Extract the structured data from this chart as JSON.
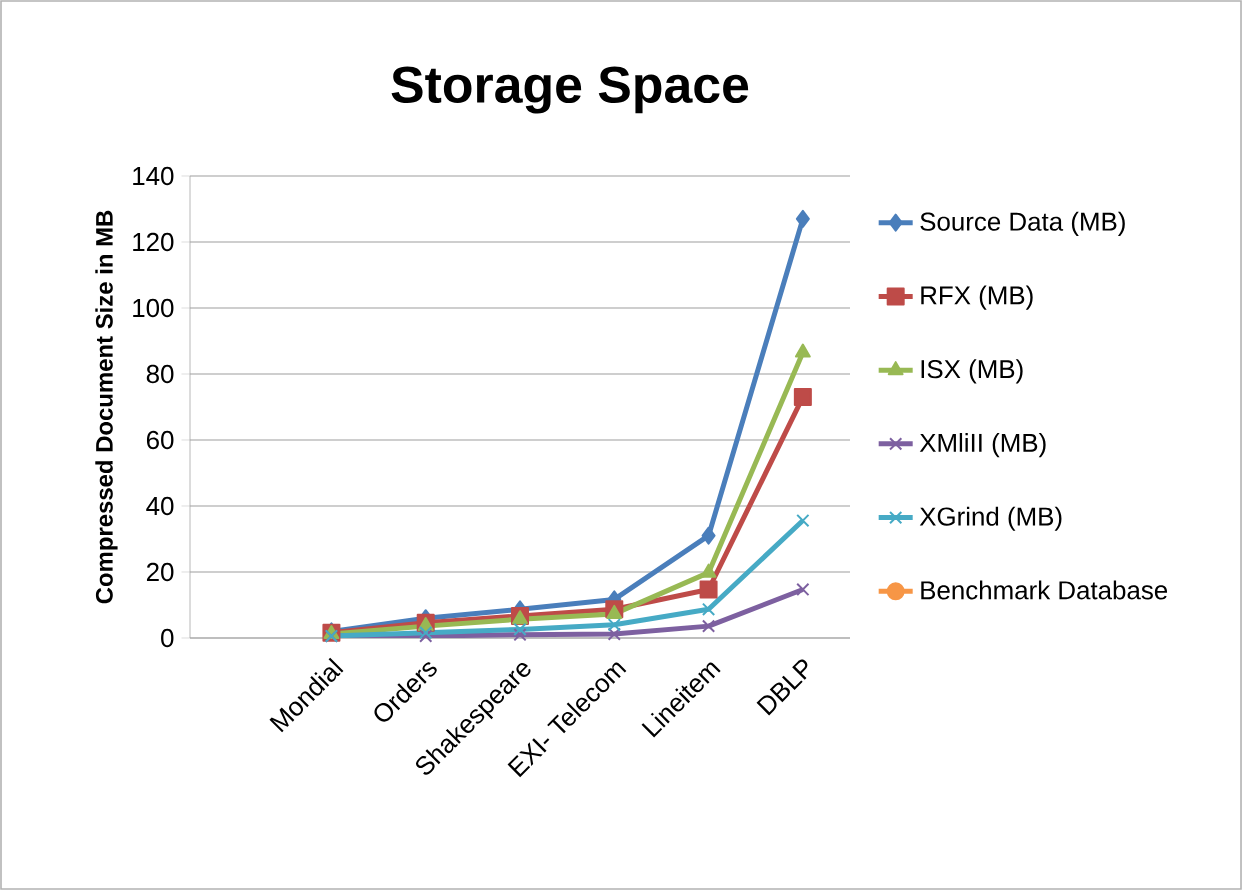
{
  "chart_data": {
    "type": "line",
    "title": "Storage Space",
    "ylabel": "Compressed Document Size in MB",
    "categories": [
      null,
      "Mondial",
      "Orders",
      "Shakespeare",
      "EXI- Telecom",
      "Lineitem",
      "DBLP"
    ],
    "ylim": [
      0,
      140
    ],
    "yticks": [
      0,
      20,
      40,
      60,
      80,
      100,
      120,
      140
    ],
    "grid": "y",
    "legend": "right",
    "series": [
      {
        "name": "Source Data (MB)",
        "color": "#4a7ebb",
        "marker": "diamond",
        "values": [
          null,
          2,
          6,
          8.7,
          11.7,
          31,
          127
        ]
      },
      {
        "name": "RFX (MB)",
        "color": "#be4b48",
        "marker": "square",
        "values": [
          null,
          1.6,
          4.6,
          6.7,
          8.7,
          14.7,
          73
        ]
      },
      {
        "name": "ISX (MB)",
        "color": "#98b954",
        "marker": "triangle",
        "values": [
          null,
          1.2,
          3.6,
          5.7,
          7.3,
          19.8,
          86.5
        ]
      },
      {
        "name": "XMliII (MB)",
        "color": "#7d60a0",
        "marker": "cross",
        "values": [
          null,
          0.6,
          0.6,
          1,
          1.2,
          3.6,
          14.7
        ]
      },
      {
        "name": "XGrind  (MB)",
        "color": "#46aac5",
        "marker": "cross",
        "values": [
          null,
          0.6,
          1.6,
          2.6,
          4,
          8.7,
          35.6
        ]
      },
      {
        "name": "Benchmark Database",
        "color": "#f79646",
        "marker": "circle",
        "values": [
          null,
          null,
          null,
          null,
          null,
          null,
          null
        ]
      }
    ]
  }
}
